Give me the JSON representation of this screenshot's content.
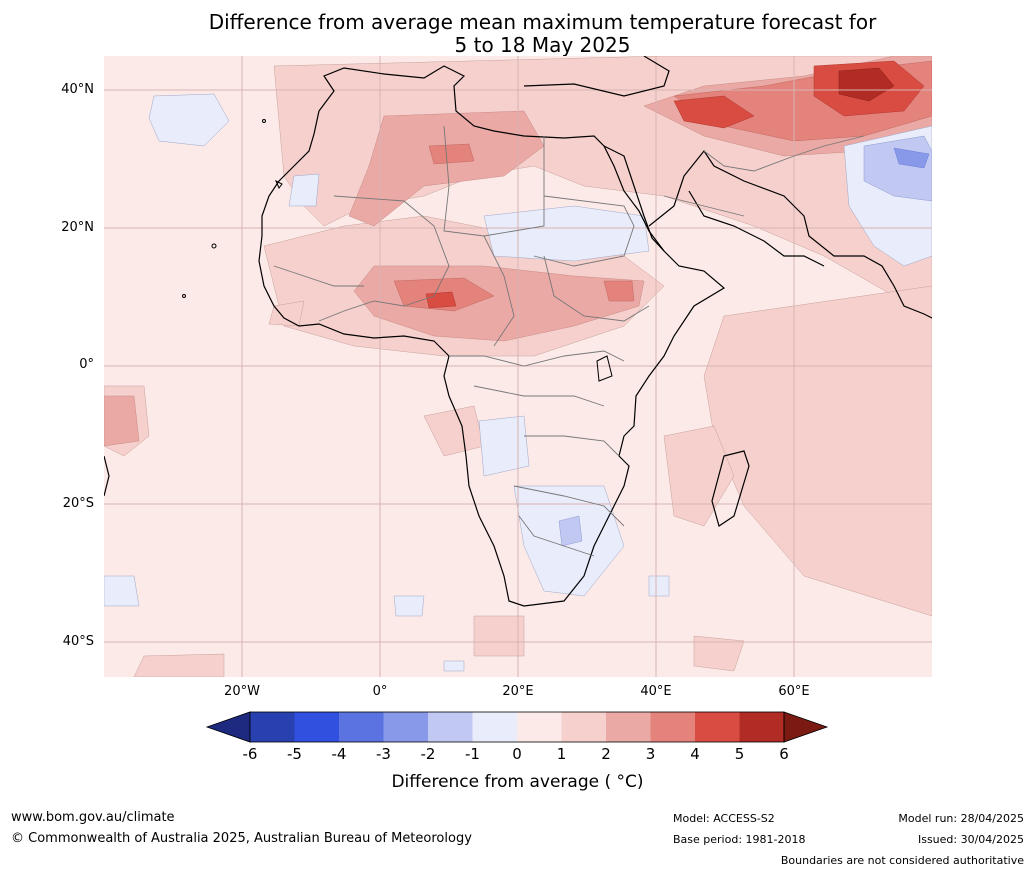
{
  "title": {
    "line1": "Difference from average mean maximum temperature forecast for",
    "line2": "5 to 18 May 2025"
  },
  "map": {
    "latitude_labels": [
      "40°N",
      "20°N",
      "0°",
      "20°S",
      "40°S"
    ],
    "longitude_labels": [
      "20°W",
      "0°",
      "20°E",
      "40°E",
      "60°E"
    ]
  },
  "colorbar": {
    "label": "Difference from average ( °C)",
    "ticks": [
      "-6",
      "-5",
      "-4",
      "-3",
      "-2",
      "-1",
      "0",
      "1",
      "2",
      "3",
      "4",
      "5",
      "6"
    ],
    "colors": [
      "#1d2a80",
      "#2940b0",
      "#3150e0",
      "#5a73e0",
      "#8799e8",
      "#c1c9f3",
      "#e9ecfb",
      "#fbeae8",
      "#f5d0cd",
      "#eaa9a5",
      "#e4827c",
      "#d84c42",
      "#b02c24",
      "#7a1a12"
    ]
  },
  "footer": {
    "website": "www.bom.gov.au/climate",
    "copyright": "© Commonwealth of Australia 2025, Australian Bureau of Meteorology",
    "model": "Model: ACCESS-S2",
    "base_period": "Base period: 1981-2018",
    "model_run": "Model run: 28/04/2025",
    "issued": "Issued: 30/04/2025",
    "disclaimer": "Boundaries are not considered authoritative"
  }
}
